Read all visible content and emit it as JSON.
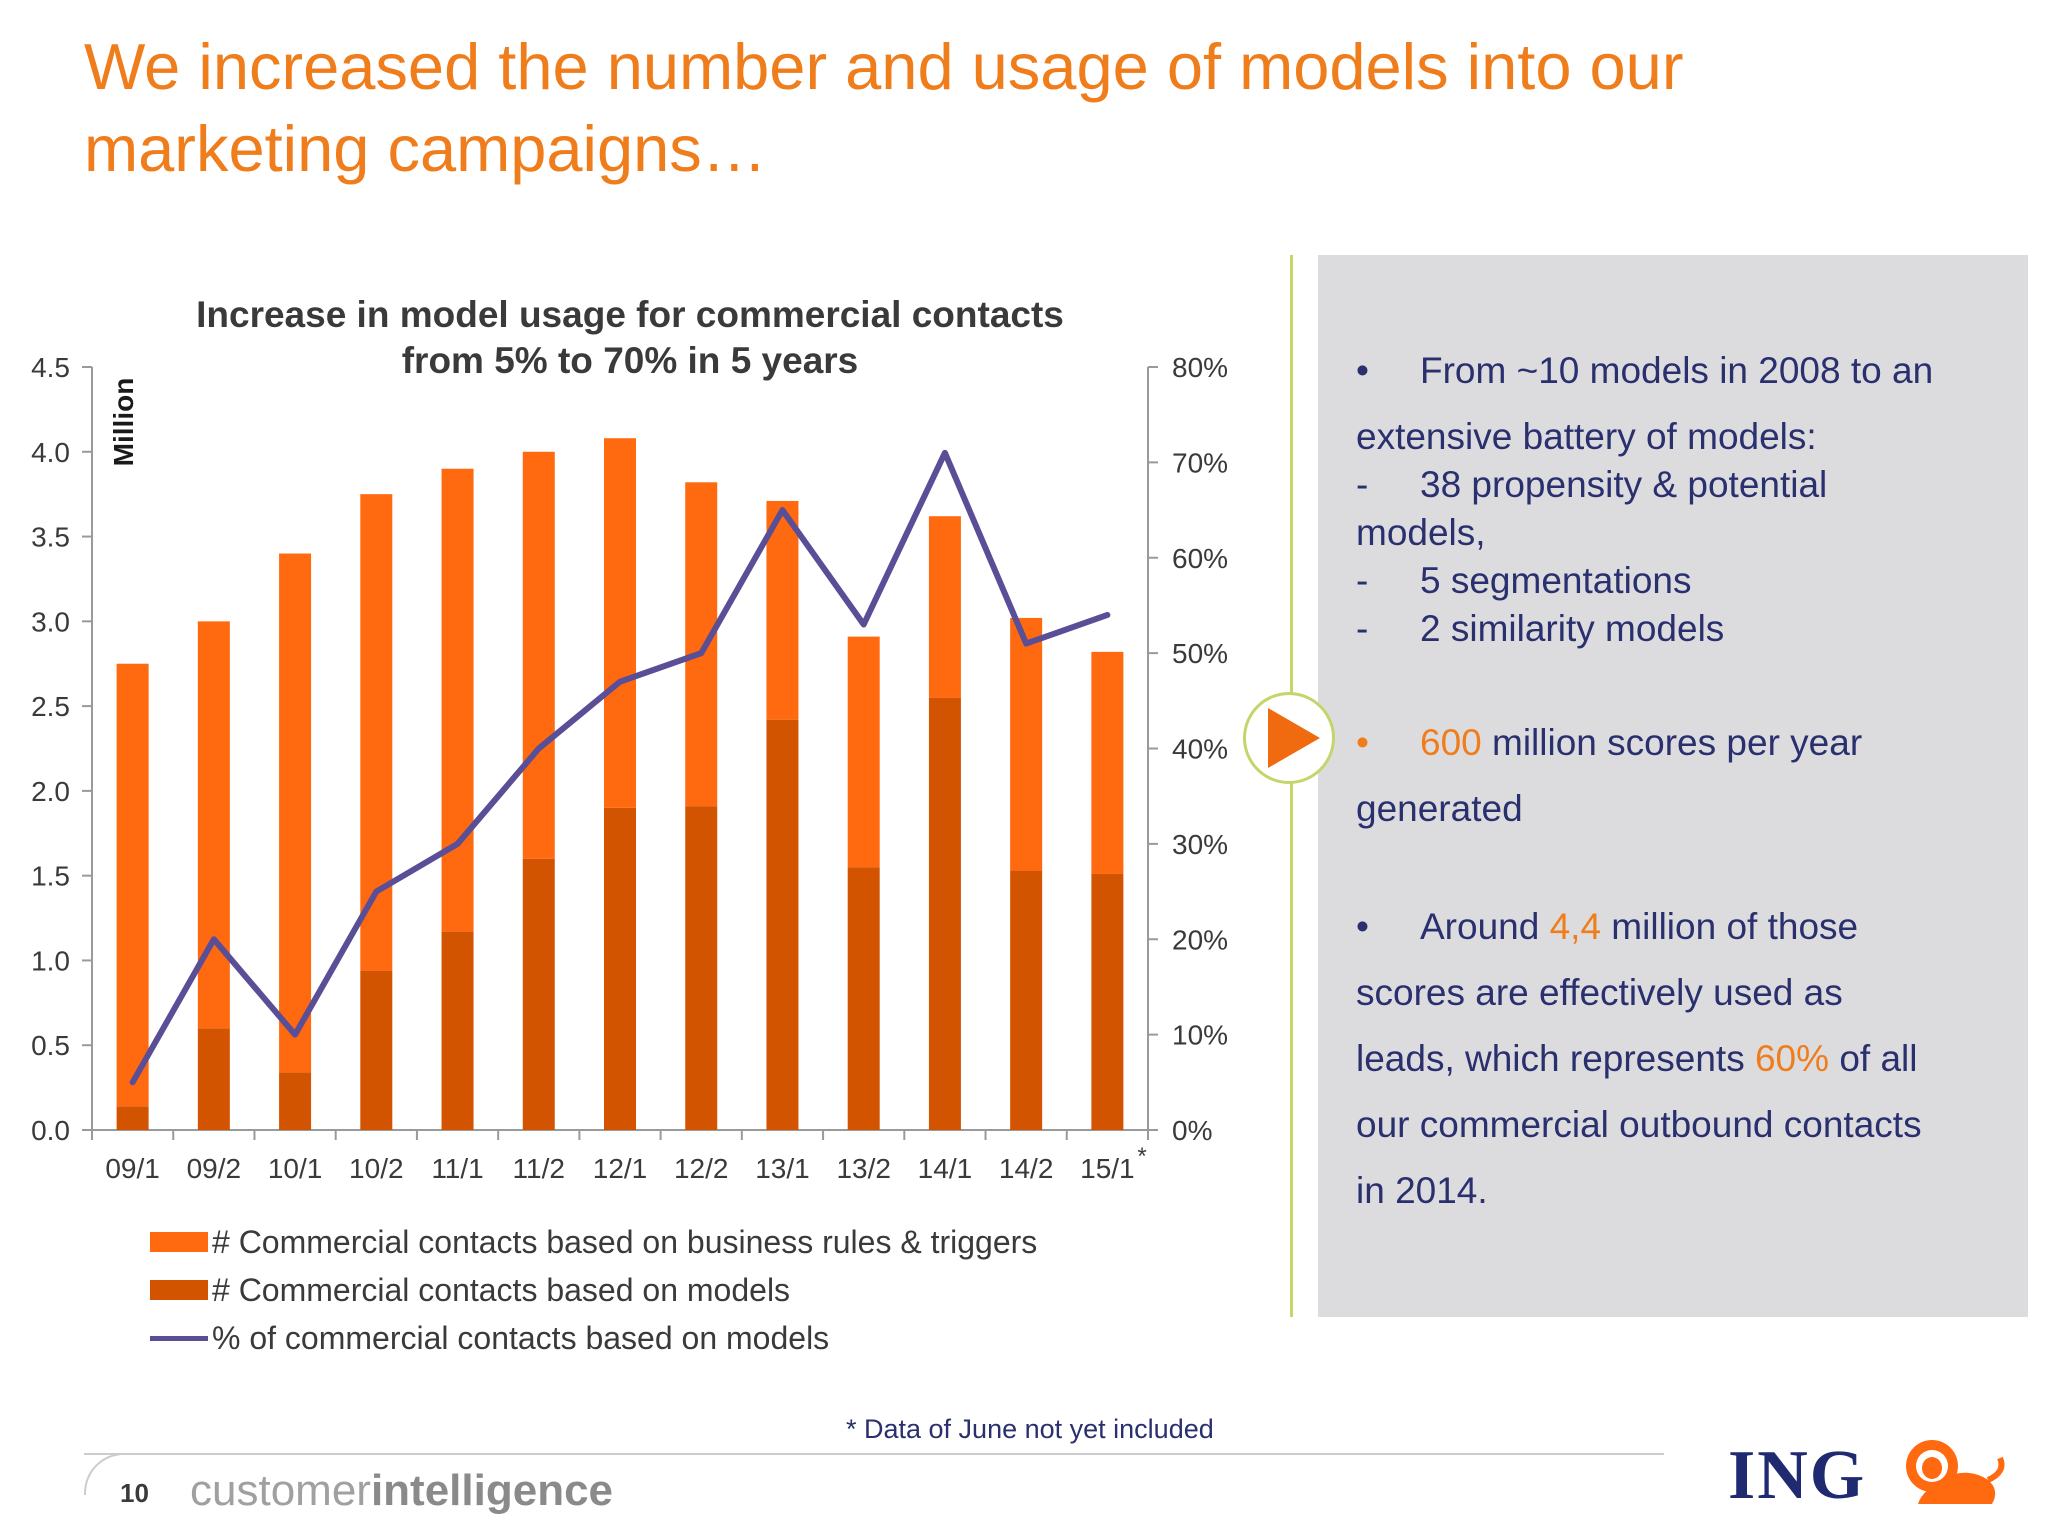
{
  "slide": {
    "title": "We increased the number and usage of models into our marketing campaigns…",
    "footnote": "* Data of June not yet included",
    "page_number": "10",
    "brand_light": "customer",
    "brand_bold": "intelligence",
    "logo_text": "ING"
  },
  "chart_data": {
    "type": "bar",
    "stacked": true,
    "title_lines": [
      "Increase in model usage for commercial contacts",
      "from 5% to 70% in 5 years"
    ],
    "ylabel": "Million",
    "ylim": [
      0,
      4.5
    ],
    "yticks": [
      "0.0",
      "0.5",
      "1.0",
      "1.5",
      "2.0",
      "2.5",
      "3.0",
      "3.5",
      "4.0",
      "4.5"
    ],
    "y2lim": [
      0,
      80
    ],
    "y2ticks": [
      "0%",
      "10%",
      "20%",
      "30%",
      "40%",
      "50%",
      "60%",
      "70%",
      "80%"
    ],
    "categories": [
      "09/1",
      "09/2",
      "10/1",
      "10/2",
      "11/1",
      "11/2",
      "12/1",
      "12/2",
      "13/1",
      "13/2",
      "14/1",
      "14/2",
      "15/1"
    ],
    "category_note": {
      "index": 12,
      "mark": "*"
    },
    "series": [
      {
        "name": "# Commercial contacts based on models",
        "type": "bar",
        "axis": "left",
        "color": "#d35400",
        "values": [
          0.14,
          0.6,
          0.34,
          0.94,
          1.17,
          1.6,
          1.9,
          1.91,
          2.42,
          1.55,
          2.55,
          1.53,
          1.51
        ]
      },
      {
        "name": "# Commercial contacts based on business rules & triggers",
        "type": "bar",
        "axis": "left",
        "color": "#ff6a10",
        "values": [
          2.61,
          2.4,
          3.06,
          2.81,
          2.73,
          2.4,
          2.18,
          1.91,
          1.29,
          1.36,
          1.07,
          1.49,
          1.31
        ]
      },
      {
        "name": "% of commercial contacts based on models",
        "type": "line",
        "axis": "right",
        "color": "#5a4e96",
        "values": [
          5,
          20,
          10,
          25,
          30,
          40,
          47,
          50,
          65,
          53,
          71,
          51,
          54
        ]
      }
    ],
    "legend": {
      "position": "bottom",
      "items": [
        {
          "label": "# Commercial contacts based on business rules & triggers",
          "kind": "bar",
          "color": "#ff6a10"
        },
        {
          "label": "# Commercial contacts based on models",
          "kind": "bar",
          "color": "#d35400"
        },
        {
          "label": "% of commercial contacts based on models",
          "kind": "line",
          "color": "#5a4e96"
        }
      ]
    }
  },
  "panel": {
    "lines": [
      {
        "parts": [
          {
            "t": "•",
            "cls": "bullet"
          },
          {
            "t": "From ~10 models in 2008 to an"
          }
        ]
      },
      {
        "parts": [
          {
            "t": "extensive battery of models:"
          }
        ]
      },
      {
        "parts": [
          {
            "t": "-",
            "cls": "dash"
          },
          {
            "t": "38 propensity & potential"
          }
        ]
      },
      {
        "parts": [
          {
            "t": "models,"
          }
        ]
      },
      {
        "parts": [
          {
            "t": "-",
            "cls": "dash"
          },
          {
            "t": "5 segmentations"
          }
        ]
      },
      {
        "parts": [
          {
            "t": "-",
            "cls": "dash"
          },
          {
            "t": "2 similarity models"
          }
        ]
      },
      {
        "parts": [
          {
            "t": "•",
            "cls": "bullet hl"
          },
          {
            "t": "600",
            "cls": "hl"
          },
          {
            "t": " million scores per year"
          }
        ]
      },
      {
        "parts": [
          {
            "t": "generated"
          }
        ]
      },
      {
        "parts": [
          {
            "t": "•",
            "cls": "bullet"
          },
          {
            "t": "Around "
          },
          {
            "t": "4,4",
            "cls": "hl"
          },
          {
            "t": " million of those"
          }
        ]
      },
      {
        "parts": [
          {
            "t": "scores are effectively used as"
          }
        ]
      },
      {
        "parts": [
          {
            "t": "leads, which represents "
          },
          {
            "t": "60%",
            "cls": "hl"
          },
          {
            "t": " of all"
          }
        ]
      },
      {
        "parts": [
          {
            "t": "our commercial outbound contacts"
          }
        ]
      },
      {
        "parts": [
          {
            "t": "in 2014."
          }
        ]
      }
    ]
  }
}
